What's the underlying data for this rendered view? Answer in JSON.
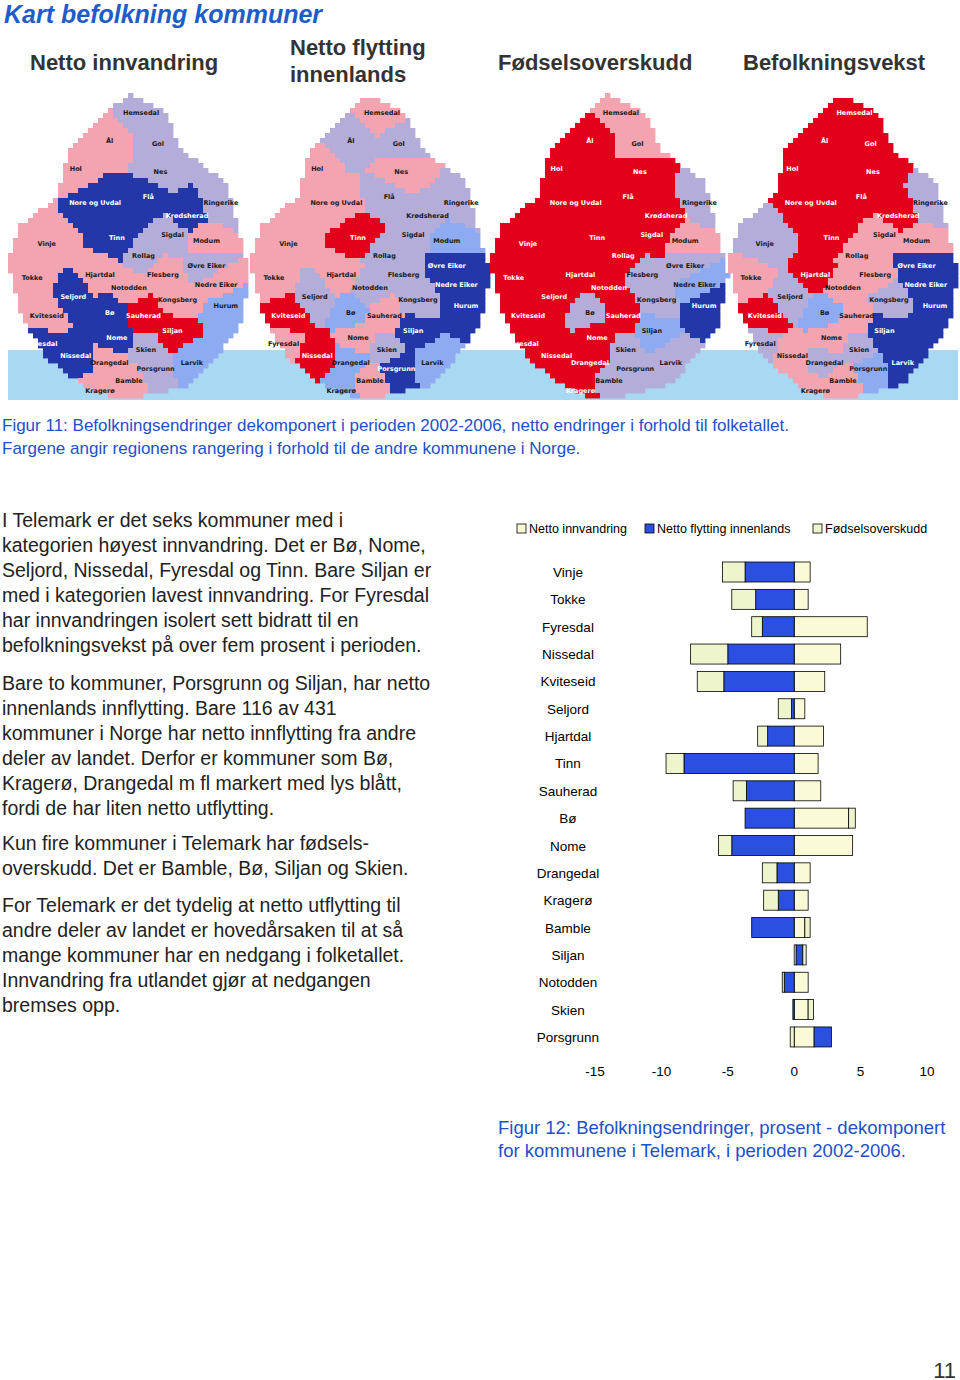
{
  "header": {
    "title": "Kart befolkning kommuner"
  },
  "maps": {
    "municipalities": [
      "Hemsedal",
      "Ål",
      "Gol",
      "Hol",
      "Nes",
      "Flå",
      "Nore og Uvdal",
      "Krødsherad",
      "Ringerike",
      "Sigdal",
      "Tinn",
      "Rollag",
      "Modum",
      "Vinje",
      "Tokke",
      "Flesberg",
      "Øvre Eiker",
      "Nedre Eiker",
      "Hurum",
      "Hjartdal",
      "Seljord",
      "Notodden",
      "Kongsberg",
      "Kviteseid",
      "Bø",
      "Sauherad",
      "Fyresdal",
      "Nome",
      "Siljan",
      "Skien",
      "Nissedal",
      "Drangedal",
      "Porsgrunn",
      "Bamble",
      "Kragerø",
      "Larvik"
    ],
    "panels": [
      {
        "title": [
          "Netto innvandring"
        ],
        "colors": [
          "#b4acd9",
          "#f4a3b0",
          "#b4acd9",
          "#f4a3b0",
          "#b4acd9",
          "#2337a8",
          "#2337a8",
          "#2337a8",
          "#b4acd9",
          "#b4acd9",
          "#2337a8",
          "#b4acd9",
          "#f4a3b0",
          "#f4a3b0",
          "#f4a3b0",
          "#f4a3b0",
          "#b4acd9",
          "#f4a3b0",
          "#8eaaf0",
          "#f4a3b0",
          "#2337a8",
          "#f4a3b0",
          "#f4a3b0",
          "#f4a3b0",
          "#2337a8",
          "#e2001a",
          "#2337a8",
          "#2337a8",
          "#e2001a",
          "#b4acd9",
          "#2337a8",
          "#f4a3b0",
          "#b4acd9",
          "#f4a3b0",
          "#f4a3b0",
          "#8eaaf0"
        ]
      },
      {
        "title": [
          "Netto flytting",
          "innenlands"
        ],
        "colors": [
          "#f4a3b0",
          "#b4acd9",
          "#b4acd9",
          "#f4a3b0",
          "#f4a3b0",
          "#b4acd9",
          "#f4a3b0",
          "#b4acd9",
          "#b4acd9",
          "#b4acd9",
          "#e2001a",
          "#b4acd9",
          "#8eaaf0",
          "#f4a3b0",
          "#f4a3b0",
          "#b4acd9",
          "#2337a8",
          "#2337a8",
          "#2337a8",
          "#f4a3b0",
          "#b4acd9",
          "#b4acd9",
          "#b4acd9",
          "#e2001a",
          "#8eaaf0",
          "#f4a3b0",
          "#f4a3b0",
          "#f4a3b0",
          "#2337a8",
          "#b4acd9",
          "#e2001a",
          "#8eaaf0",
          "#2337a8",
          "#f4a3b0",
          "#8eaaf0",
          "#8eaaf0"
        ]
      },
      {
        "title": [
          "Fødselsoverskudd"
        ],
        "colors": [
          "#f4a3b0",
          "#e2001a",
          "#f4a3b0",
          "#e2001a",
          "#e2001a",
          "#e2001a",
          "#e2001a",
          "#e2001a",
          "#b4acd9",
          "#e2001a",
          "#e2001a",
          "#e2001a",
          "#f4a3b0",
          "#e2001a",
          "#e2001a",
          "#b4acd9",
          "#b4acd9",
          "#8eaaf0",
          "#2337a8",
          "#e2001a",
          "#e2001a",
          "#e2001a",
          "#b4acd9",
          "#e2001a",
          "#b4acd9",
          "#e2001a",
          "#e2001a",
          "#e2001a",
          "#8eaaf0",
          "#b4acd9",
          "#e2001a",
          "#e2001a",
          "#b4acd9",
          "#b4acd9",
          "#e2001a",
          "#b4acd9"
        ]
      },
      {
        "title": [
          "Befolkningsvekst"
        ],
        "colors": [
          "#e2001a",
          "#e2001a",
          "#e2001a",
          "#e2001a",
          "#e2001a",
          "#e2001a",
          "#e2001a",
          "#e2001a",
          "#b4acd9",
          "#f4a3b0",
          "#e2001a",
          "#f4a3b0",
          "#f4a3b0",
          "#b4acd9",
          "#f4a3b0",
          "#f4a3b0",
          "#2337a8",
          "#2337a8",
          "#2337a8",
          "#e2001a",
          "#b4acd9",
          "#f4a3b0",
          "#b4acd9",
          "#e2001a",
          "#8eaaf0",
          "#f4a3b0",
          "#b4acd9",
          "#f4a3b0",
          "#2337a8",
          "#b4acd9",
          "#f4a3b0",
          "#b4acd9",
          "#8eaaf0",
          "#f4a3b0",
          "#f4a3b0",
          "#2337a8"
        ]
      }
    ]
  },
  "figure11_caption": [
    "Figur 11: Befolkningsendringer dekomponert i perioden 2002-2006, netto endringer i forhold til folketallet.",
    "Fargene angir regionens rangering i forhold til de andre kommunene i Norge."
  ],
  "body": {
    "paragraphs": [
      [
        "I Telemark er det seks kommuner med i",
        "kategorien høyest innvandring. Det er Bø, Nome,",
        "Seljord, Nissedal, Fyresdal og Tinn. Bare Siljan er",
        "med i kategorien lavest innvandring. For Fyresdal",
        "har innvandringen isolert sett bidratt til en",
        "befolkningsvekst på over fem prosent i perioden."
      ],
      [
        "Bare to kommuner, Porsgrunn og Siljan, har netto",
        "innenlands innflytting. Bare 116 av 431",
        "kommuner i Norge har netto innflytting fra andre",
        "deler av landet. Derfor er kommuner som Bø,",
        "Kragerø, Drangedal m fl markert med lys blått,",
        "fordi de har liten netto utflytting."
      ],
      [
        "Kun fire kommuner i Telemark har fødsels-",
        "overskudd. Det er Bamble, Bø, Siljan og Skien."
      ],
      [
        "For Telemark er det tydelig at netto utflytting til",
        "andre deler av landet er hovedårsaken til at så",
        "mange kommuner har en nedgang i folketallet.",
        "Innvandring fra utlandet gjør at nedgangen",
        "bremses opp."
      ]
    ]
  },
  "chart_data": {
    "type": "bar",
    "orientation": "horizontal",
    "stacked": true,
    "legend": "top",
    "categories": [
      "Vinje",
      "Tokke",
      "Fyresdal",
      "Nissedal",
      "Kviteseid",
      "Seljord",
      "Hjartdal",
      "Tinn",
      "Sauherad",
      "Bø",
      "Nome",
      "Drangedal",
      "Kragerø",
      "Bamble",
      "Siljan",
      "Notodden",
      "Skien",
      "Porsgrunn"
    ],
    "series": [
      {
        "name": "Netto innvandring",
        "color": "#fbfad6",
        "values": [
          1.2,
          1.05,
          5.5,
          3.5,
          2.3,
          0.8,
          2.2,
          1.8,
          2.0,
          4.1,
          4.4,
          1.2,
          1.05,
          0.8,
          0.15,
          1.05,
          1.05,
          1.5
        ]
      },
      {
        "name": "Netto flytting innenlands",
        "color": "#2b4fe0",
        "values": [
          -3.7,
          -2.9,
          -2.4,
          -5.0,
          -5.3,
          -0.2,
          -2.0,
          -8.3,
          -3.6,
          -3.7,
          -4.7,
          -1.3,
          -1.2,
          -3.2,
          0.5,
          -0.75,
          -0.1,
          1.3
        ]
      },
      {
        "name": "Fødselsoverskudd",
        "color": "#eef5cc",
        "values": [
          -1.7,
          -1.8,
          -0.8,
          -2.8,
          -2.0,
          -1.0,
          -0.75,
          -1.35,
          -1.0,
          0.5,
          -1.0,
          -1.1,
          -1.1,
          0.4,
          0.25,
          -0.15,
          0.4,
          -0.3
        ]
      }
    ],
    "xlim": [
      -15,
      10
    ],
    "xticks": [
      -15,
      -10,
      -5,
      0,
      5,
      10
    ],
    "grid": false
  },
  "figure12_caption": [
    "Figur 12: Befolkningsendringer, prosent - dekomponert",
    "for kommunene i Telemark, i perioden 2002-2006."
  ],
  "page_number": "11"
}
